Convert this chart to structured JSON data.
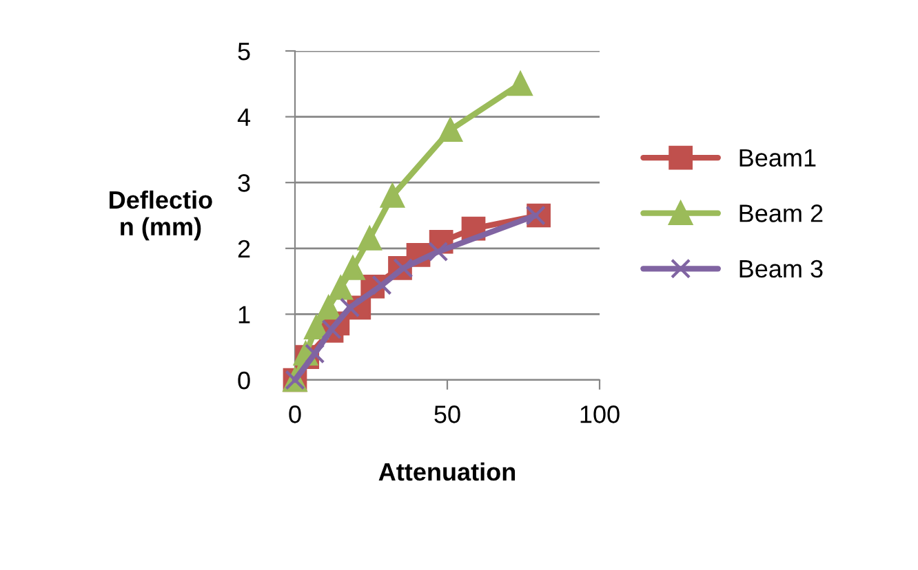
{
  "chart_data": {
    "type": "line",
    "xlabel": "Attenuation",
    "ylabel": "Deflectio\nn (mm)",
    "xlim": [
      0,
      100
    ],
    "xticks": [
      0,
      50,
      100
    ],
    "ylim": [
      0,
      5
    ],
    "yticks": [
      0,
      1,
      2,
      3,
      4,
      5
    ],
    "grid": "y",
    "legend": "right",
    "line_style": "solid",
    "series": [
      {
        "name": "Beam1",
        "color": "#c0504d",
        "marker": "square",
        "x": [
          0,
          4,
          12,
          14,
          21,
          25.5,
          34.5,
          40.5,
          48,
          58.6,
          80
        ],
        "values": [
          0,
          0.35,
          0.75,
          0.86,
          1.1,
          1.42,
          1.7,
          1.9,
          2.1,
          2.3,
          2.5
        ]
      },
      {
        "name": "Beam 2",
        "color": "#9bbb59",
        "marker": "triangle",
        "x": [
          0,
          3.5,
          7,
          11,
          15,
          19,
          24.5,
          32,
          51,
          74
        ],
        "values": [
          0,
          0.4,
          0.8,
          1.1,
          1.4,
          1.7,
          2.15,
          2.8,
          3.8,
          4.5
        ]
      },
      {
        "name": "Beam 3",
        "color": "#8064a2",
        "marker": "cross",
        "x": [
          0,
          6.5,
          12,
          18,
          28.5,
          35.5,
          47,
          79
        ],
        "values": [
          0,
          0.4,
          0.77,
          1.1,
          1.44,
          1.7,
          1.95,
          2.5
        ]
      }
    ]
  }
}
